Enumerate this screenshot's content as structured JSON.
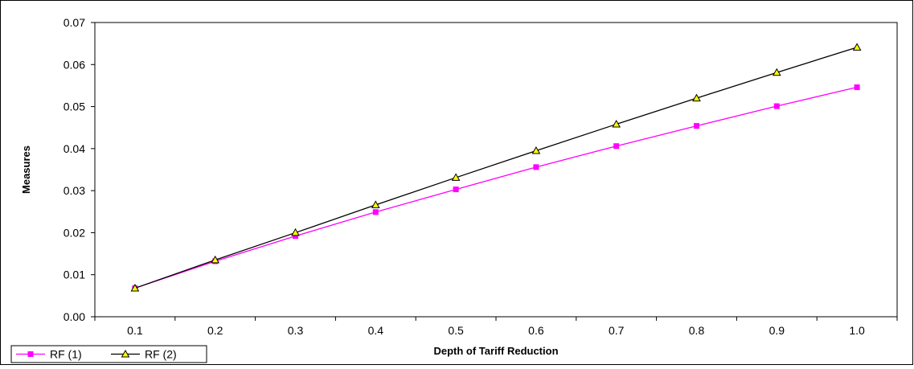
{
  "chart_data": {
    "type": "line",
    "title": "",
    "xlabel": "Depth of Tariff Reduction",
    "ylabel": "Measures",
    "x": [
      "0.1",
      "0.2",
      "0.3",
      "0.4",
      "0.5",
      "0.6",
      "0.7",
      "0.8",
      "0.9",
      "1.0"
    ],
    "yticks": [
      "0.00",
      "0.01",
      "0.02",
      "0.03",
      "0.04",
      "0.05",
      "0.06",
      "0.07"
    ],
    "ylim": [
      0,
      0.07
    ],
    "grid": false,
    "legend_position": "bottom-left",
    "series": [
      {
        "name": "RF (1)",
        "color": "#ff00ff",
        "marker": "square",
        "values": [
          0.0068,
          0.0132,
          0.0192,
          0.0249,
          0.0303,
          0.0356,
          0.0406,
          0.0454,
          0.0501,
          0.0546
        ]
      },
      {
        "name": "RF (2)",
        "color": "#000000",
        "marker_fill": "#ffff00",
        "marker": "triangle",
        "values": [
          0.0068,
          0.0135,
          0.02,
          0.0266,
          0.0331,
          0.0395,
          0.0458,
          0.052,
          0.0581,
          0.0641
        ]
      }
    ]
  }
}
